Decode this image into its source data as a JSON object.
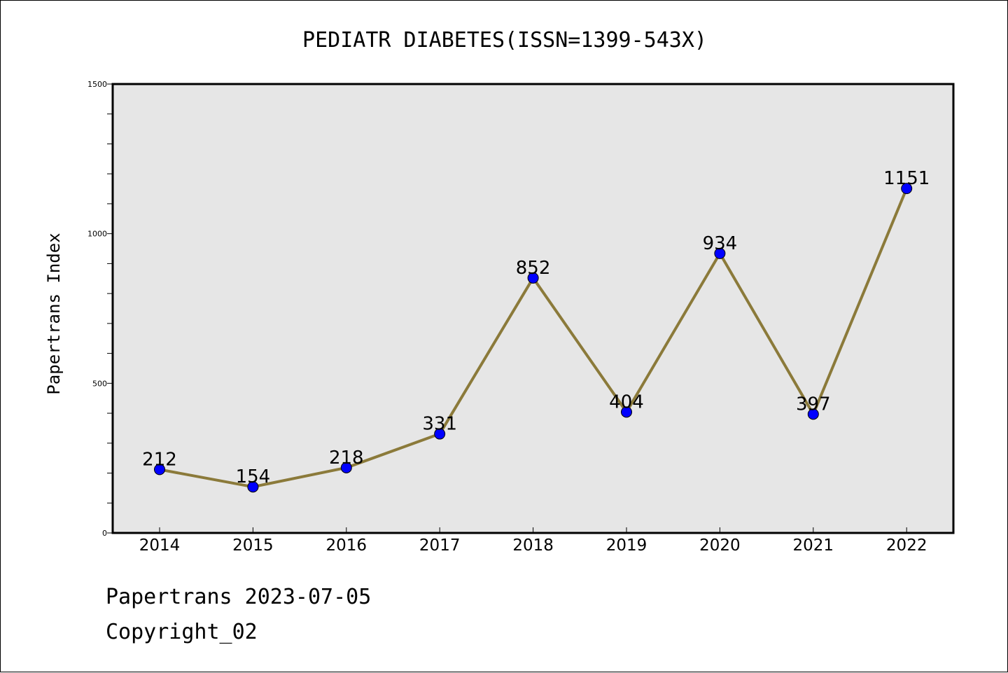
{
  "chart_data": {
    "type": "line",
    "title": "PEDIATR DIABETES(ISSN=1399-543X)",
    "xlabel": "",
    "ylabel": "Papertrans Index",
    "categories": [
      "2014",
      "2015",
      "2016",
      "2017",
      "2018",
      "2019",
      "2020",
      "2021",
      "2022"
    ],
    "series": [
      {
        "values": [
          212,
          154,
          218,
          331,
          852,
          404,
          934,
          397,
          1151
        ]
      }
    ],
    "data_labels": [
      "212",
      "154",
      "218",
      "331",
      "852",
      "404",
      "934",
      "397",
      "1151"
    ],
    "ylim": [
      0,
      1500
    ],
    "yticks": [
      0,
      500,
      1000,
      1500
    ],
    "ytick_labels": [
      "0",
      "500",
      "1000",
      "1500"
    ],
    "grid": false,
    "line_color": "#8b7a3a",
    "marker_color": "#0000ff",
    "plot_background": "#e6e6e6"
  },
  "footer": {
    "date_text": "Papertrans 2023-07-05",
    "copyright_text": "Copyright_02"
  }
}
